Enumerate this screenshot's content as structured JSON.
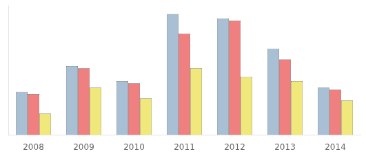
{
  "chart_data": {
    "type": "bar",
    "categories": [
      "2008",
      "2009",
      "2010",
      "2011",
      "2012",
      "2013",
      "2014"
    ],
    "series": [
      {
        "color": "#a8bfd4",
        "values": [
          20,
          32,
          25,
          56,
          54,
          40,
          22
        ]
      },
      {
        "color": "#f08080",
        "values": [
          19,
          31,
          24,
          47,
          53,
          35,
          21
        ]
      },
      {
        "color": "#f0e87a",
        "values": [
          10,
          22,
          17,
          31,
          27,
          25,
          16
        ]
      }
    ],
    "ylim": [
      0,
      60
    ],
    "yticks": [],
    "grid": false,
    "tick_labels": "x"
  }
}
